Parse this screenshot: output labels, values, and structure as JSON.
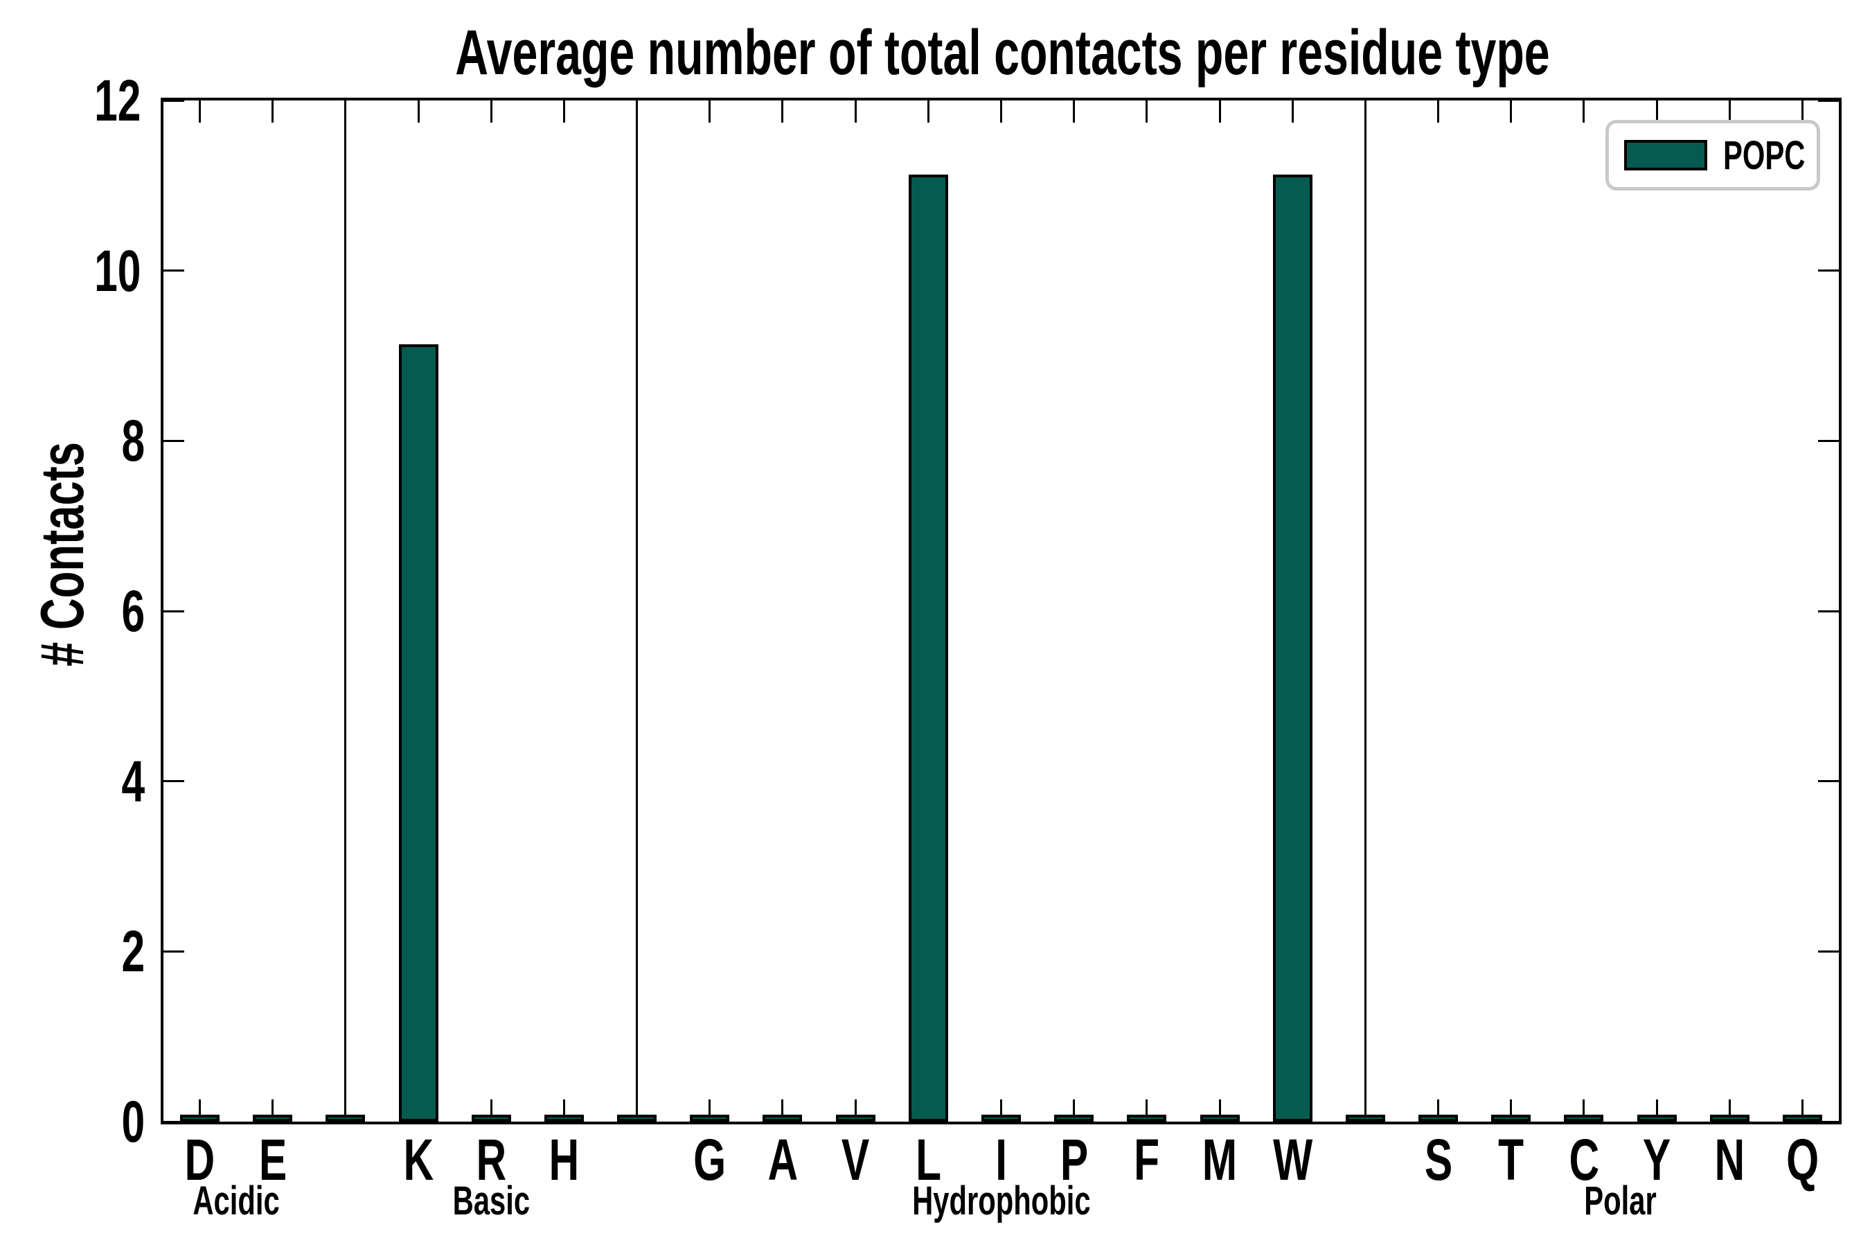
{
  "chart_data": {
    "type": "bar",
    "title": "Average number of total contacts per residue type",
    "ylabel": "# Contacts",
    "xlabel": "",
    "ylim": [
      0,
      12
    ],
    "yticks": [
      0,
      2,
      4,
      6,
      8,
      10,
      12
    ],
    "grid": false,
    "legend": {
      "entries": [
        "POPC"
      ],
      "position": "upper-right"
    },
    "bar_style": {
      "fill": "#065b50",
      "edge": "#000000"
    },
    "group_separators": true,
    "gap_bar_value": 0.05,
    "groups": [
      {
        "label": "Acidic",
        "categories": [
          "D",
          "E"
        ],
        "values": [
          0.05,
          0.05
        ]
      },
      {
        "label": "Basic",
        "categories": [
          "K",
          "R",
          "H"
        ],
        "values": [
          9.1,
          0.05,
          0.05
        ]
      },
      {
        "label": "Hydrophobic",
        "categories": [
          "G",
          "A",
          "V",
          "L",
          "I",
          "P",
          "F",
          "M",
          "W"
        ],
        "values": [
          0.05,
          0.05,
          0.05,
          11.1,
          0.05,
          0.05,
          0.05,
          0.05,
          11.1
        ]
      },
      {
        "label": "Polar",
        "categories": [
          "S",
          "T",
          "C",
          "Y",
          "N",
          "Q"
        ],
        "values": [
          0.05,
          0.05,
          0.05,
          0.05,
          0.05,
          0.05
        ]
      }
    ]
  }
}
